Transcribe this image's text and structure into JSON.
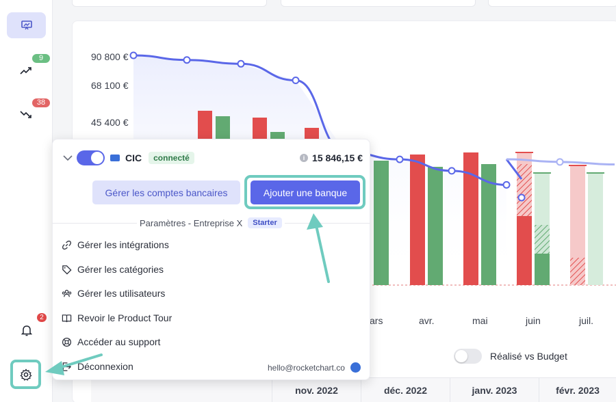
{
  "sidebar": {
    "items": [
      {
        "icon": "presentation-chart-icon",
        "active": true
      },
      {
        "icon": "trending-up-icon",
        "badge": "9",
        "badge_color": "#6bbf83"
      },
      {
        "icon": "trending-down-icon",
        "badge": "38",
        "badge_color": "#e26565"
      }
    ],
    "notifications": {
      "icon": "bell-icon",
      "badge": "2",
      "badge_color": "#e04848"
    },
    "settings": {
      "icon": "gear-icon"
    }
  },
  "chart_data": {
    "type": "bar",
    "title": "",
    "y_ticks": [
      "90 800 €",
      "68 100 €",
      "45 400 €"
    ],
    "x_labels": [
      "ars",
      "avr.",
      "mai",
      "juin",
      "juil."
    ],
    "colors": {
      "outflow": "#e24d4d",
      "inflow": "#62aa72",
      "line": "#5a67e8",
      "forecast_line": "#aab3f4"
    },
    "balance_line_points": [
      90800,
      89000,
      87500,
      81000,
      53000,
      50000,
      45500,
      40000,
      35000
    ],
    "forecast_line_points": [
      35000,
      28000,
      27000
    ]
  },
  "toggle": {
    "label": "Réalisé vs Budget",
    "checked": false
  },
  "table": {
    "months": [
      "nov. 2022",
      "déc. 2022",
      "janv. 2023",
      "févr. 2023"
    ]
  },
  "menu": {
    "bank": {
      "name": "CIC",
      "status": "connecté",
      "balance": "15 846,15 €",
      "enabled": true
    },
    "buttons": {
      "manage_accounts": "Gérer les comptes bancaires",
      "add_bank": "Ajouter une banque"
    },
    "params_label": "Paramètres - Entreprise X",
    "plan": "Starter",
    "items": [
      {
        "label": "Gérer les intégrations",
        "icon": "link-icon"
      },
      {
        "label": "Gérer les catégories",
        "icon": "tag-icon"
      },
      {
        "label": "Gérer les utilisateurs",
        "icon": "users-icon"
      },
      {
        "label": "Revoir le Product Tour",
        "icon": "book-icon"
      },
      {
        "label": "Accéder au support",
        "icon": "lifebuoy-icon"
      },
      {
        "label": "Déconnexion",
        "icon": "logout-icon"
      }
    ],
    "email": "hello@rocketchart.co"
  },
  "annotations": {
    "arrow_color": "#6fcbbf"
  }
}
